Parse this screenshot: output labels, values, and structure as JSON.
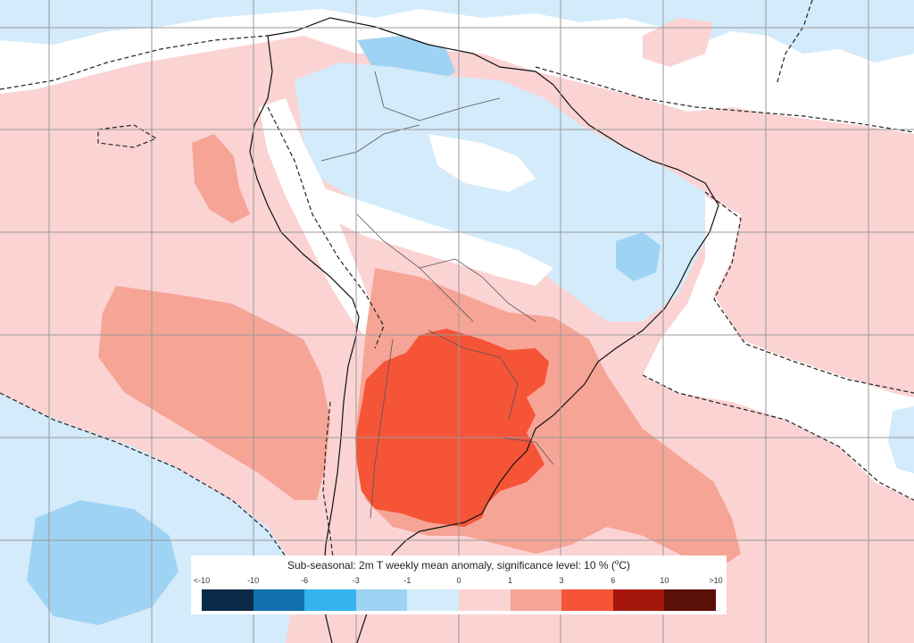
{
  "map": {
    "legend": {
      "title_prefix": "Sub-seasonal: 2m T weekly mean anomaly, significance level: 10 % (",
      "title_unit_sup": "o",
      "title_suffix": "C)",
      "ticks": [
        "<-10",
        "-10",
        "-6",
        "-3",
        "-1",
        "0",
        "1",
        "3",
        "6",
        "10",
        ">10"
      ],
      "colors": [
        "#0a2a47",
        "#1070b0",
        "#35b3ef",
        "#9fd3f3",
        "#d3ebfa",
        "#fbd3d3",
        "#f6a496",
        "#f55437",
        "#a5160c",
        "#5a0f08"
      ]
    },
    "palette": {
      "ocean_pos": "#fbd3d3",
      "warm": "#f6a496",
      "hot": "#f55437",
      "cool": "#d3ebfa",
      "cold": "#9fd3f3",
      "neutral": "#ffffff",
      "grid": "#9a9a9a"
    }
  }
}
